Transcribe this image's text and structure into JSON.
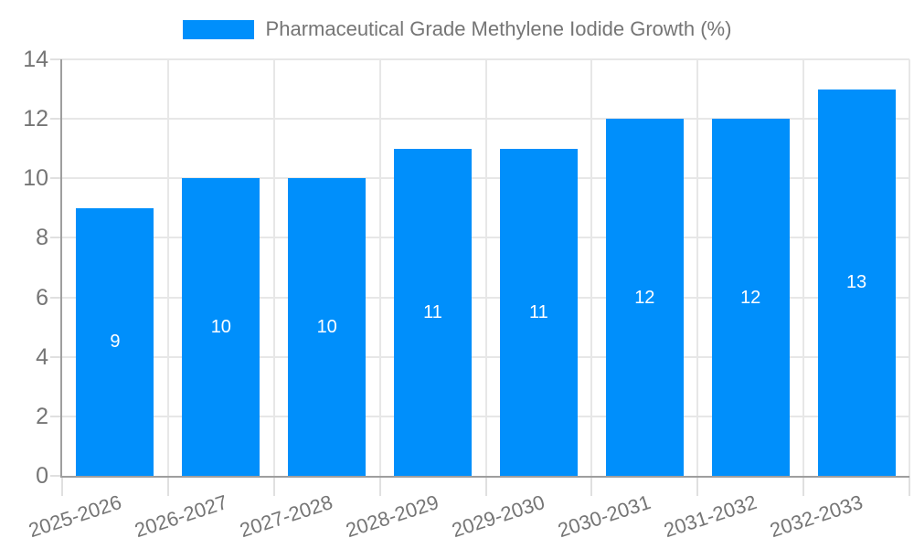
{
  "legend": {
    "label": "Pharmaceutical Grade Methylene Iodide Growth (%)",
    "swatch_icon": "series-color-swatch"
  },
  "colors": {
    "bar": "#008FFB",
    "grid": "#e7e7e7",
    "tick": "#e0e0e0",
    "axis": "#9e9e9e",
    "text": "#757575",
    "value_label": "#ffffff",
    "background": "#ffffff"
  },
  "chart_data": {
    "type": "bar",
    "title": "Pharmaceutical Grade Methylene Iodide Growth (%)",
    "categories": [
      "2025-2026",
      "2026-2027",
      "2027-2028",
      "2028-2029",
      "2029-2030",
      "2030-2031",
      "2031-2032",
      "2032-2033"
    ],
    "values": [
      9,
      10,
      10,
      11,
      11,
      12,
      12,
      13
    ],
    "series": [
      {
        "name": "Pharmaceutical Grade Methylene Iodide Growth (%)",
        "values": [
          9,
          10,
          10,
          11,
          11,
          12,
          12,
          13
        ]
      }
    ],
    "xlabel": "",
    "ylabel": "",
    "ylim": [
      0,
      14
    ],
    "yticks": [
      0,
      2,
      4,
      6,
      8,
      10,
      12,
      14
    ],
    "grid": true,
    "legend_position": "top",
    "value_label_position": "inside-center",
    "x_label_rotation_deg": -18
  }
}
